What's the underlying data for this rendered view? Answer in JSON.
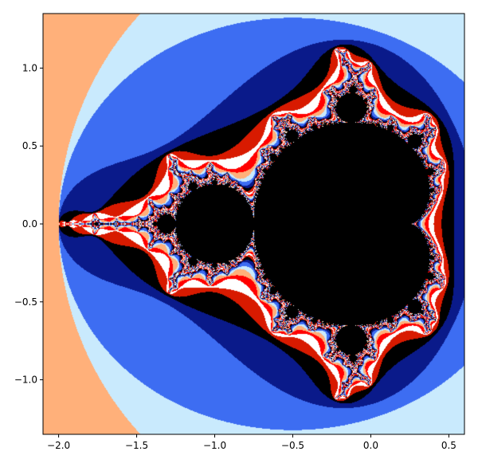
{
  "chart_data": {
    "type": "heatmap",
    "title": "",
    "xlabel": "",
    "ylabel": "",
    "xlim": [
      -2.1,
      0.6
    ],
    "ylim": [
      -1.35,
      1.35
    ],
    "x_ticks": [
      {
        "value": -2.0,
        "label": "−2.0"
      },
      {
        "value": -1.5,
        "label": "−1.5"
      },
      {
        "value": -1.0,
        "label": "−1.0"
      },
      {
        "value": -0.5,
        "label": "−0.5"
      },
      {
        "value": 0.0,
        "label": "0.0"
      },
      {
        "value": 0.5,
        "label": "0.5"
      }
    ],
    "y_ticks": [
      {
        "value": 1.0,
        "label": "1.0"
      },
      {
        "value": 0.5,
        "label": "0.5"
      },
      {
        "value": 0.0,
        "label": "0.0"
      },
      {
        "value": -0.5,
        "label": "−0.5"
      },
      {
        "value": -1.0,
        "label": "−1.0"
      }
    ],
    "grid": false,
    "legend": false,
    "function": "Mandelbrot set escape time, z -> z^2 + c",
    "inside_color": "#000000",
    "escape_palette": [
      "#ff0000",
      "#ffb07a",
      "#c9eafd",
      "#3d6df2",
      "#0a1a8a",
      "#000000",
      "#d81a00",
      "#ffffff"
    ]
  }
}
